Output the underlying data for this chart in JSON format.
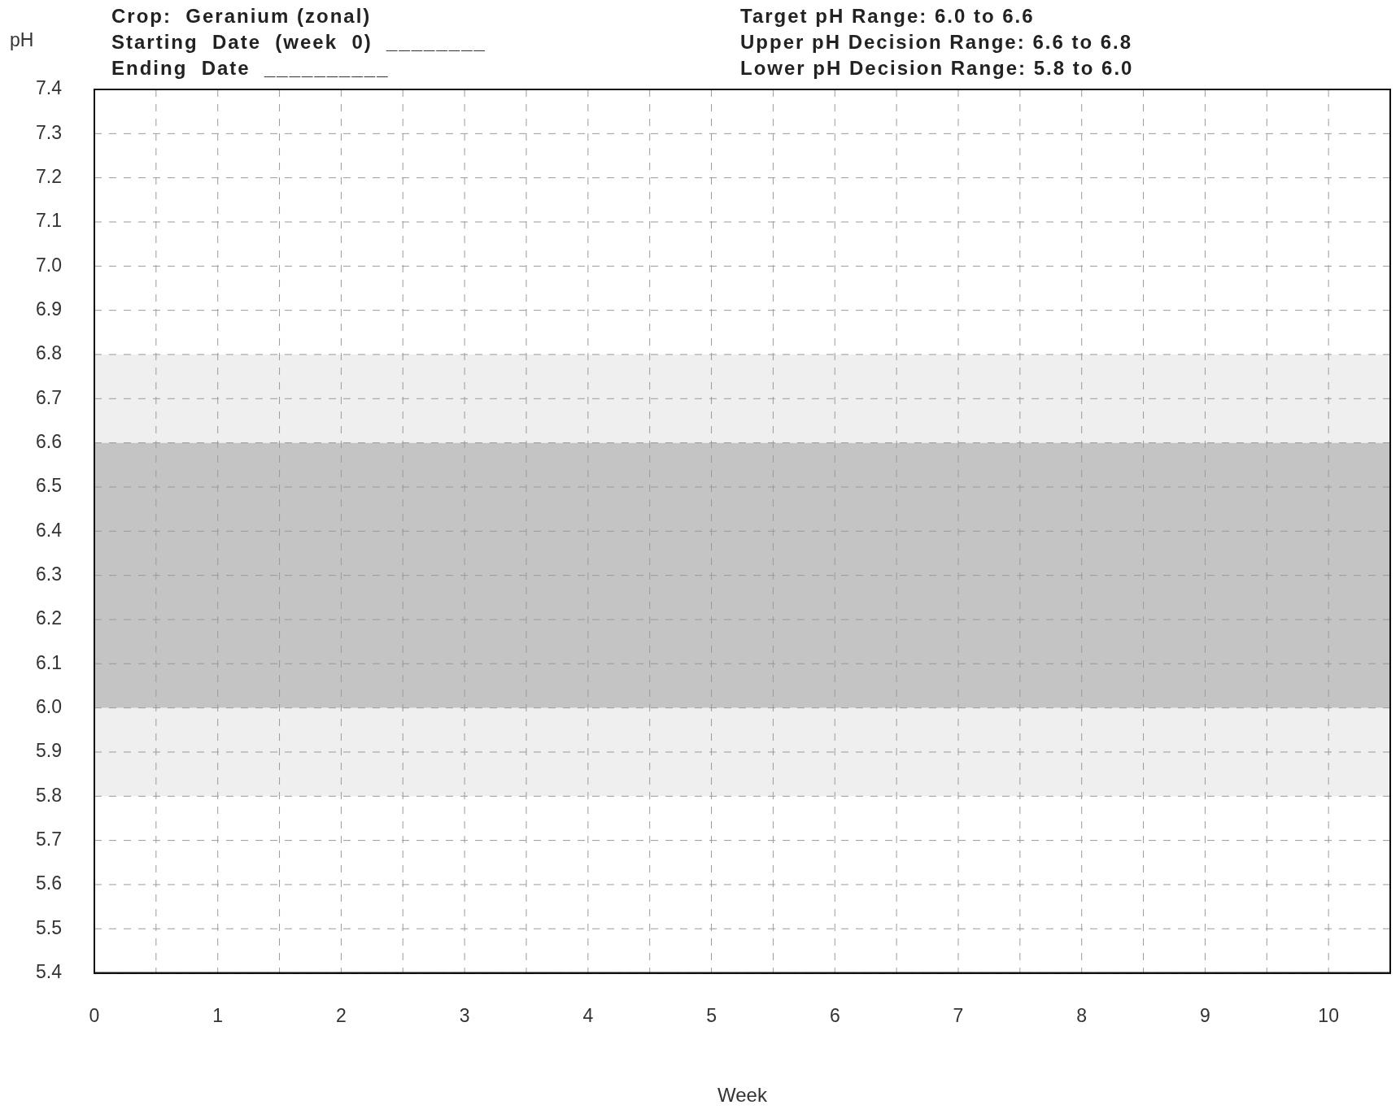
{
  "chart_data": {
    "type": "line",
    "xlabel": "Week",
    "ylabel": "pH",
    "annotations": [
      "Crop:  Geranium (zonal)",
      "Starting  Date  (week  0)  ________",
      "Ending  Date  __________",
      "Target pH Range: 6.0 to 6.6",
      "Upper pH Decision Range: 6.6 to 6.8",
      "Lower pH Decision Range: 5.8 to 6.0"
    ],
    "xlim": [
      0,
      10.5
    ],
    "xticks": [
      0,
      {
        "value": 0.5,
        "label": null
      },
      1,
      {
        "value": 1.5,
        "label": null
      },
      2,
      {
        "value": 2.5,
        "label": null
      },
      3,
      {
        "value": 3.5,
        "label": null
      },
      4,
      {
        "value": 4.5,
        "label": null
      },
      5,
      {
        "value": 5.5,
        "label": null
      },
      6,
      {
        "value": 6.5,
        "label": null
      },
      7,
      {
        "value": 7.5,
        "label": null
      },
      8,
      {
        "value": 8.5,
        "label": null
      },
      9,
      {
        "value": 9.5,
        "label": null
      },
      10
    ],
    "ylim": [
      5.4,
      7.4
    ],
    "yticks": [
      {
        "value": 5.4,
        "label": "5.4"
      },
      {
        "value": 5.5,
        "label": "5.5"
      },
      {
        "value": 5.6,
        "label": "5.6"
      },
      {
        "value": 5.7,
        "label": "5.7"
      },
      {
        "value": 5.8,
        "label": "5.8"
      },
      {
        "value": 5.9,
        "label": "5.9"
      },
      {
        "value": 6.0,
        "label": "6.0"
      },
      {
        "value": 6.1,
        "label": "6.1"
      },
      {
        "value": 6.2,
        "label": "6.2"
      },
      {
        "value": 6.3,
        "label": "6.3"
      },
      {
        "value": 6.4,
        "label": "6.4"
      },
      {
        "value": 6.5,
        "label": "6.5"
      },
      {
        "value": 6.6,
        "label": "6.6"
      },
      {
        "value": 6.7,
        "label": "6.7"
      },
      {
        "value": 6.8,
        "label": "6.8"
      },
      {
        "value": 6.9,
        "label": "6.9"
      },
      {
        "value": 7.0,
        "label": "7.0"
      },
      {
        "value": 7.1,
        "label": "7.1"
      },
      {
        "value": 7.2,
        "label": "7.2"
      },
      {
        "value": 7.3,
        "label": "7.3"
      },
      {
        "value": 7.4,
        "label": "7.4"
      }
    ],
    "bands": [
      {
        "axis": "y",
        "from": 6.6,
        "to": 6.8,
        "color": "#efefef"
      },
      {
        "axis": "y",
        "from": 5.8,
        "to": 6.0,
        "color": "#efefef"
      },
      {
        "axis": "y",
        "from": 6.0,
        "to": 6.6,
        "color": "#c4c4c4"
      }
    ],
    "grid": true,
    "legend": false
  }
}
